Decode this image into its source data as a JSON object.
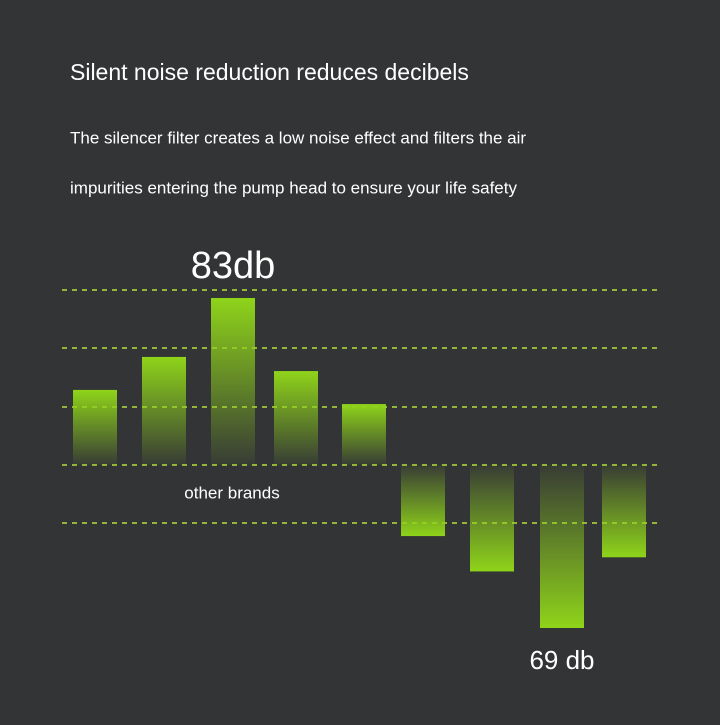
{
  "chart_data": {
    "type": "bar",
    "title": "Silent noise reduction reduces decibels",
    "subtitle": [
      "The silencer filter creates a low noise effect and filters the air",
      "impurities entering the pump head to ensure your life safety"
    ],
    "annotation": "other brands",
    "values": [
      79.1,
      80.5,
      83,
      79.9,
      78.5,
      72.9,
      71.4,
      69,
      72.0
    ],
    "value_labels": [
      null,
      null,
      "83db",
      null,
      null,
      null,
      null,
      "69 db",
      null
    ],
    "color": "#8fd41a"
  }
}
